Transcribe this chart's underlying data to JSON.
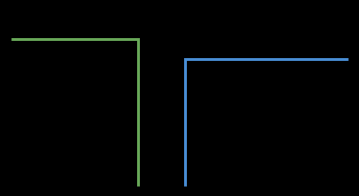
{
  "background_color": "#000000",
  "green_color": "#6aab5a",
  "blue_color": "#4a90d9",
  "line_width": 2.0,
  "green_x": [
    0.03,
    0.385,
    0.385
  ],
  "green_y": [
    0.8,
    0.8,
    0.05
  ],
  "blue_x": [
    0.515,
    0.515,
    0.97
  ],
  "blue_y": [
    0.05,
    0.7,
    0.7
  ],
  "xlim": [
    0,
    1
  ],
  "ylim": [
    0,
    1
  ],
  "figsize": [
    3.59,
    1.96
  ],
  "dpi": 100
}
